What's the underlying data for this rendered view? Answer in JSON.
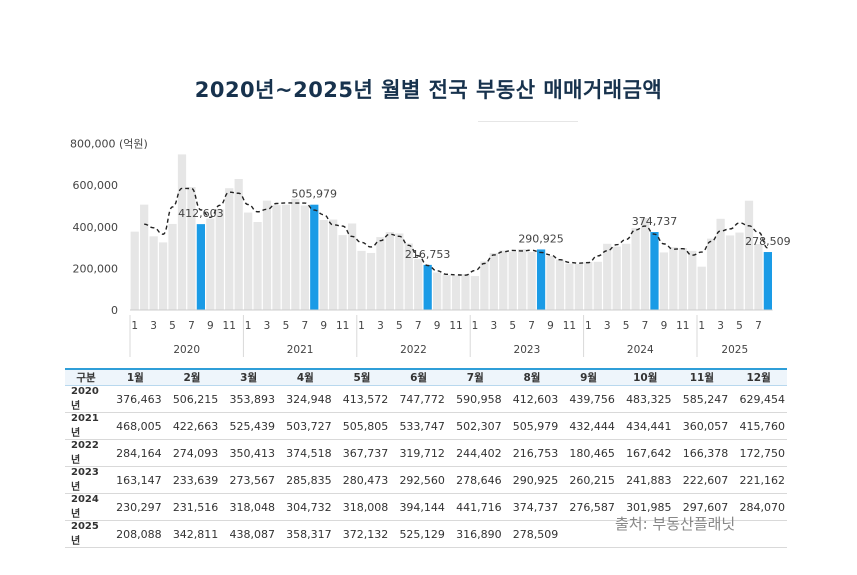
{
  "title": "2020년~2025년 월별 전국 부동산 매매거래금액",
  "source": "출처: 부동산플래닛",
  "chart_data": {
    "type": "bar",
    "unit_label": "(억원)",
    "ylim": [
      0,
      800000
    ],
    "yticks": [
      "0",
      "200,000",
      "400,000",
      "600,000",
      "800,000 (억원)"
    ],
    "years": [
      "2020",
      "2021",
      "2022",
      "2023",
      "2024",
      "2025"
    ],
    "month_tick_labels": [
      "1",
      "3",
      "5",
      "7",
      "9",
      "11"
    ],
    "series": [
      {
        "values": [
          376463,
          506215,
          353893,
          324948,
          413572,
          747772,
          590958,
          412603,
          439756,
          483325,
          585247,
          629454,
          468005,
          422663,
          525439,
          503727,
          505805,
          533747,
          502307,
          505979,
          432444,
          434441,
          360057,
          415760,
          284164,
          274093,
          350413,
          374518,
          367737,
          319712,
          244402,
          216753,
          180465,
          167642,
          166378,
          172750,
          163147,
          233639,
          273567,
          285835,
          280473,
          292560,
          278646,
          290925,
          260215,
          241883,
          222607,
          221162,
          230297,
          231516,
          318048,
          304732,
          318008,
          394144,
          441716,
          374737,
          276587,
          301985,
          297607,
          284070,
          208088,
          342811,
          438087,
          358317,
          372132,
          525129,
          316890,
          278509
        ]
      }
    ],
    "highlight_labels": [
      "412,603",
      "505,979",
      "216,753",
      "290,925",
      "374,737",
      "278,509"
    ],
    "trend": "dashed moving average",
    "highlight_color": "#1a9be6",
    "bar_color": "#e6e6e6",
    "trend_color": "#222222"
  },
  "table": {
    "headers": [
      "구분",
      "1월",
      "2월",
      "3월",
      "4월",
      "5월",
      "6월",
      "7월",
      "8월",
      "9월",
      "10월",
      "11월",
      "12월"
    ],
    "rows": [
      [
        "2020년",
        "376,463",
        "506,215",
        "353,893",
        "324,948",
        "413,572",
        "747,772",
        "590,958",
        "412,603",
        "439,756",
        "483,325",
        "585,247",
        "629,454"
      ],
      [
        "2021년",
        "468,005",
        "422,663",
        "525,439",
        "503,727",
        "505,805",
        "533,747",
        "502,307",
        "505,979",
        "432,444",
        "434,441",
        "360,057",
        "415,760"
      ],
      [
        "2022년",
        "284,164",
        "274,093",
        "350,413",
        "374,518",
        "367,737",
        "319,712",
        "244,402",
        "216,753",
        "180,465",
        "167,642",
        "166,378",
        "172,750"
      ],
      [
        "2023년",
        "163,147",
        "233,639",
        "273,567",
        "285,835",
        "280,473",
        "292,560",
        "278,646",
        "290,925",
        "260,215",
        "241,883",
        "222,607",
        "221,162"
      ],
      [
        "2024년",
        "230,297",
        "231,516",
        "318,048",
        "304,732",
        "318,008",
        "394,144",
        "441,716",
        "374,737",
        "276,587",
        "301,985",
        "297,607",
        "284,070"
      ],
      [
        "2025년",
        "208,088",
        "342,811",
        "438,087",
        "358,317",
        "372,132",
        "525,129",
        "316,890",
        "278,509",
        "",
        "",
        "",
        ""
      ]
    ]
  }
}
